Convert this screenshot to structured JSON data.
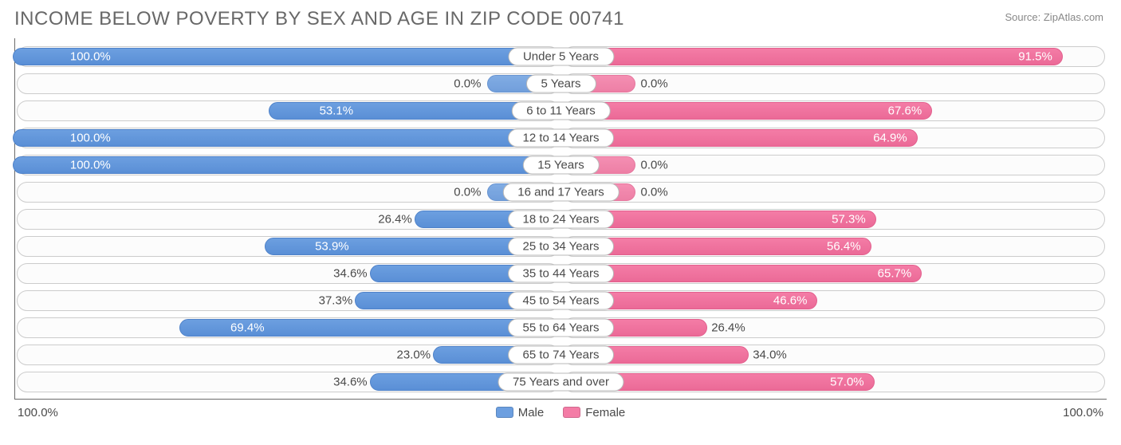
{
  "title": "INCOME BELOW POVERTY BY SEX AND AGE IN ZIP CODE 00741",
  "source": "Source: ZipAtlas.com",
  "axis": {
    "left_end": "100.0%",
    "right_end": "100.0%",
    "max": 100.0
  },
  "colors": {
    "male": "#6c9fe0",
    "female": "#f47ca6",
    "track_bg": "#fcfcfc",
    "track_border": "#cccccc",
    "text": "#4a4a4a",
    "title": "#686868"
  },
  "legend": [
    {
      "label": "Male",
      "color": "#6c9fe0"
    },
    {
      "label": "Female",
      "color": "#f47ca6"
    }
  ],
  "label_threshold_inside_pct": 40,
  "zero_stub_label": "0.0%",
  "rows": [
    {
      "category": "Under 5 Years",
      "male": 100.0,
      "female": 91.5
    },
    {
      "category": "5 Years",
      "male": 0.0,
      "female": 0.0
    },
    {
      "category": "6 to 11 Years",
      "male": 53.1,
      "female": 67.6
    },
    {
      "category": "12 to 14 Years",
      "male": 100.0,
      "female": 64.9
    },
    {
      "category": "15 Years",
      "male": 100.0,
      "female": 0.0
    },
    {
      "category": "16 and 17 Years",
      "male": 0.0,
      "female": 0.0
    },
    {
      "category": "18 to 24 Years",
      "male": 26.4,
      "female": 57.3
    },
    {
      "category": "25 to 34 Years",
      "male": 53.9,
      "female": 56.4
    },
    {
      "category": "35 to 44 Years",
      "male": 34.6,
      "female": 65.7
    },
    {
      "category": "45 to 54 Years",
      "male": 37.3,
      "female": 46.6
    },
    {
      "category": "55 to 64 Years",
      "male": 69.4,
      "female": 26.4
    },
    {
      "category": "65 to 74 Years",
      "male": 23.0,
      "female": 34.0
    },
    {
      "category": "75 Years and over",
      "male": 34.6,
      "female": 57.0
    }
  ]
}
